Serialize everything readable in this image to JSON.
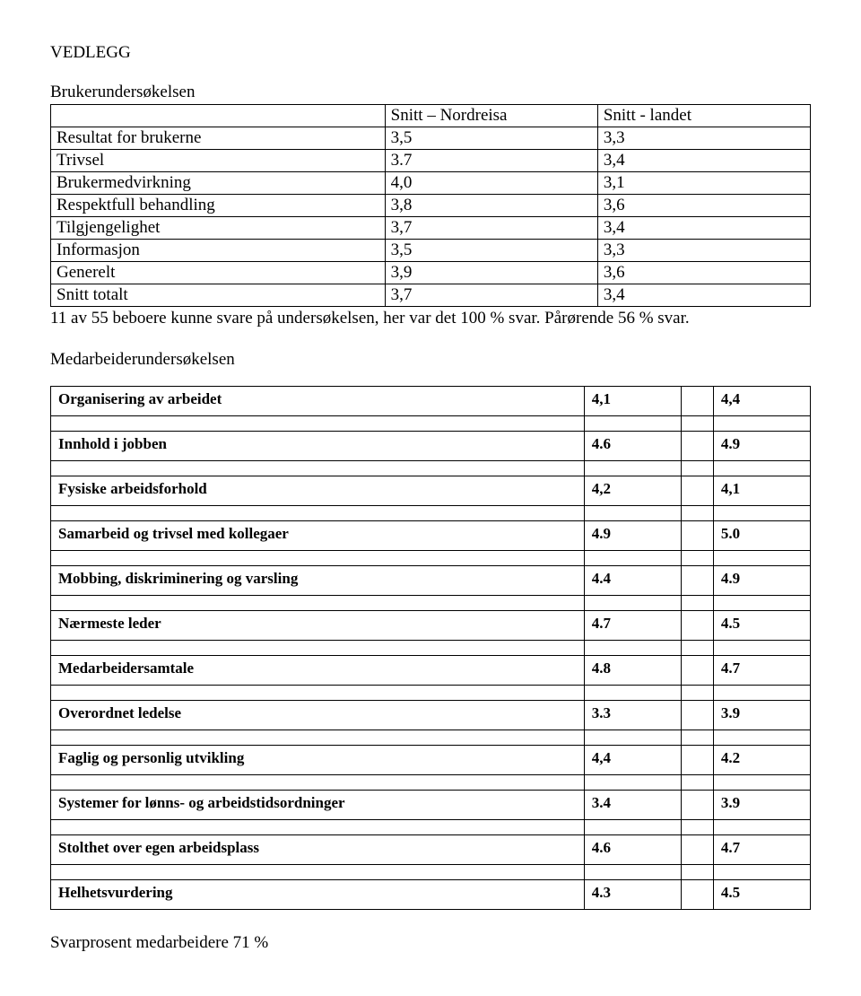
{
  "page": {
    "title": "VEDLEGG",
    "survey1_title": "Brukerundersøkelsen",
    "survey1_header": {
      "blank": "",
      "colA": "Snitt – Nordreisa",
      "colB": "Snitt - landet"
    },
    "survey1_rows": [
      {
        "label": "Resultat for brukerne",
        "a": "3,5",
        "b": "3,3"
      },
      {
        "label": "Trivsel",
        "a": "3.7",
        "b": "3,4"
      },
      {
        "label": "Brukermedvirkning",
        "a": "4,0",
        "b": "3,1"
      },
      {
        "label": "Respektfull behandling",
        "a": "3,8",
        "b": "3,6"
      },
      {
        "label": "Tilgjengelighet",
        "a": "3,7",
        "b": "3,4"
      },
      {
        "label": "Informasjon",
        "a": "3,5",
        "b": "3,3"
      },
      {
        "label": "Generelt",
        "a": "3,9",
        "b": "3,6"
      },
      {
        "label": "Snitt totalt",
        "a": "3,7",
        "b": "3,4"
      }
    ],
    "note": "11 av 55 beboere kunne svare på undersøkelsen, her var det 100 % svar. Pårørende 56 % svar.",
    "survey2_title": "Medarbeiderundersøkelsen",
    "survey2_rows": [
      {
        "label": "Organisering av arbeidet",
        "v1": "4,1",
        "v2": "4,4"
      },
      {
        "label": "Innhold i jobben",
        "v1": "4.6",
        "v2": "4.9"
      },
      {
        "label": "Fysiske arbeidsforhold",
        "v1": "4,2",
        "v2": "4,1"
      },
      {
        "label": "Samarbeid og trivsel med kollegaer",
        "v1": "4.9",
        "v2": "5.0"
      },
      {
        "label": "Mobbing, diskriminering og varsling",
        "v1": "4.4",
        "v2": "4.9"
      },
      {
        "label": "Nærmeste leder",
        "v1": "4.7",
        "v2": "4.5"
      },
      {
        "label": "Medarbeidersamtale",
        "v1": "4.8",
        "v2": "4.7"
      },
      {
        "label": "Overordnet ledelse",
        "v1": "3.3",
        "v2": "3.9"
      },
      {
        "label": "Faglig og personlig utvikling",
        "v1": "4,4",
        "v2": "4.2"
      },
      {
        "label": "Systemer for lønns- og arbeidstidsordninger",
        "v1": "3.4",
        "v2": "3.9"
      },
      {
        "label": "Stolthet over egen arbeidsplass",
        "v1": "4.6",
        "v2": "4.7"
      },
      {
        "label": "Helhetsvurdering",
        "v1": "4.3",
        "v2": "4.5"
      }
    ],
    "footer": "Svarprosent medarbeidere 71 %"
  },
  "style": {
    "t2": {
      "font_weight": "bold",
      "font_size_pt": 13,
      "col_widths_pct": [
        66,
        12,
        4,
        12
      ]
    },
    "t1": {
      "font_size_pt": 14,
      "col_widths_pct": [
        44,
        28,
        28
      ]
    },
    "body_font": "Times New Roman",
    "text_color": "#000000",
    "background_color": "#ffffff",
    "border_color": "#000000"
  }
}
